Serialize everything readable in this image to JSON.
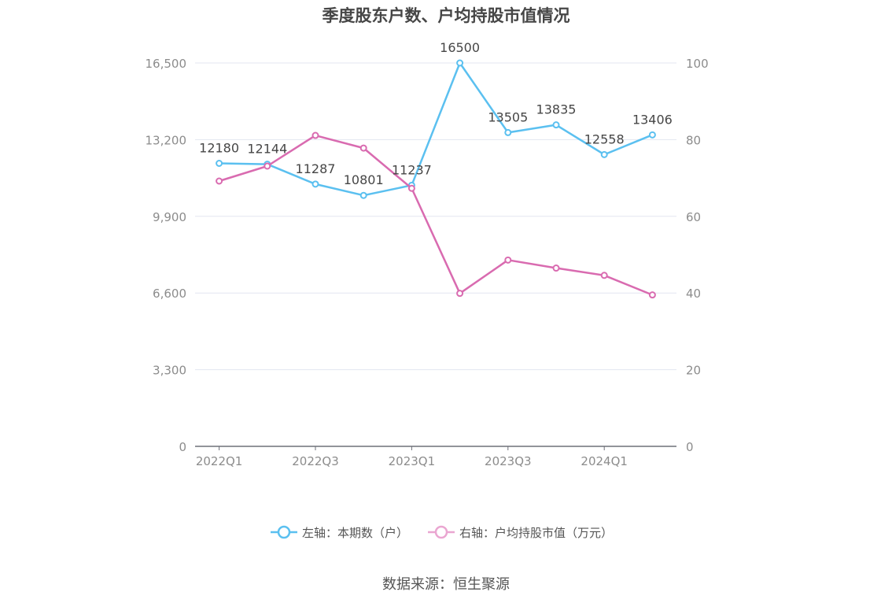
{
  "chart_data": {
    "type": "line",
    "title": "季度股东户数、户均持股市值情况",
    "categories": [
      "2022Q1",
      "2022Q2",
      "2022Q3",
      "2022Q4",
      "2023Q1",
      "2023Q2",
      "2023Q3",
      "2023Q4",
      "2024Q1",
      "2024Q2"
    ],
    "x_tick_labels": [
      "2022Q1",
      "2022Q3",
      "2023Q1",
      "2023Q3",
      "2024Q1"
    ],
    "left_axis": {
      "min": 0,
      "max": 16500,
      "ticks": [
        "0",
        "3,300",
        "6,600",
        "9,900",
        "13,200",
        "16,500"
      ]
    },
    "right_axis": {
      "min": 0,
      "max": 100,
      "ticks": [
        "0",
        "20",
        "40",
        "60",
        "80",
        "100"
      ]
    },
    "series": [
      {
        "name": "左轴：本期数（户）",
        "axis": "left",
        "color": "#5bc0f0",
        "values": [
          12180,
          12144,
          11287,
          10801,
          11237,
          16500,
          13505,
          13835,
          12558,
          13406
        ],
        "labels": [
          "12180",
          "12144",
          "11287",
          "10801",
          "11237",
          "16500",
          "13505",
          "13835",
          "12558",
          "13406"
        ]
      },
      {
        "name": "右轴：户均持股市值（万元）",
        "axis": "right",
        "color": "#d96bb0",
        "values": [
          69.2,
          73.1,
          81.1,
          77.8,
          67.3,
          39.9,
          48.6,
          46.5,
          44.6,
          39.5
        ]
      }
    ],
    "grid": true,
    "legend_position": "bottom"
  },
  "source": "数据来源：恒生聚源"
}
